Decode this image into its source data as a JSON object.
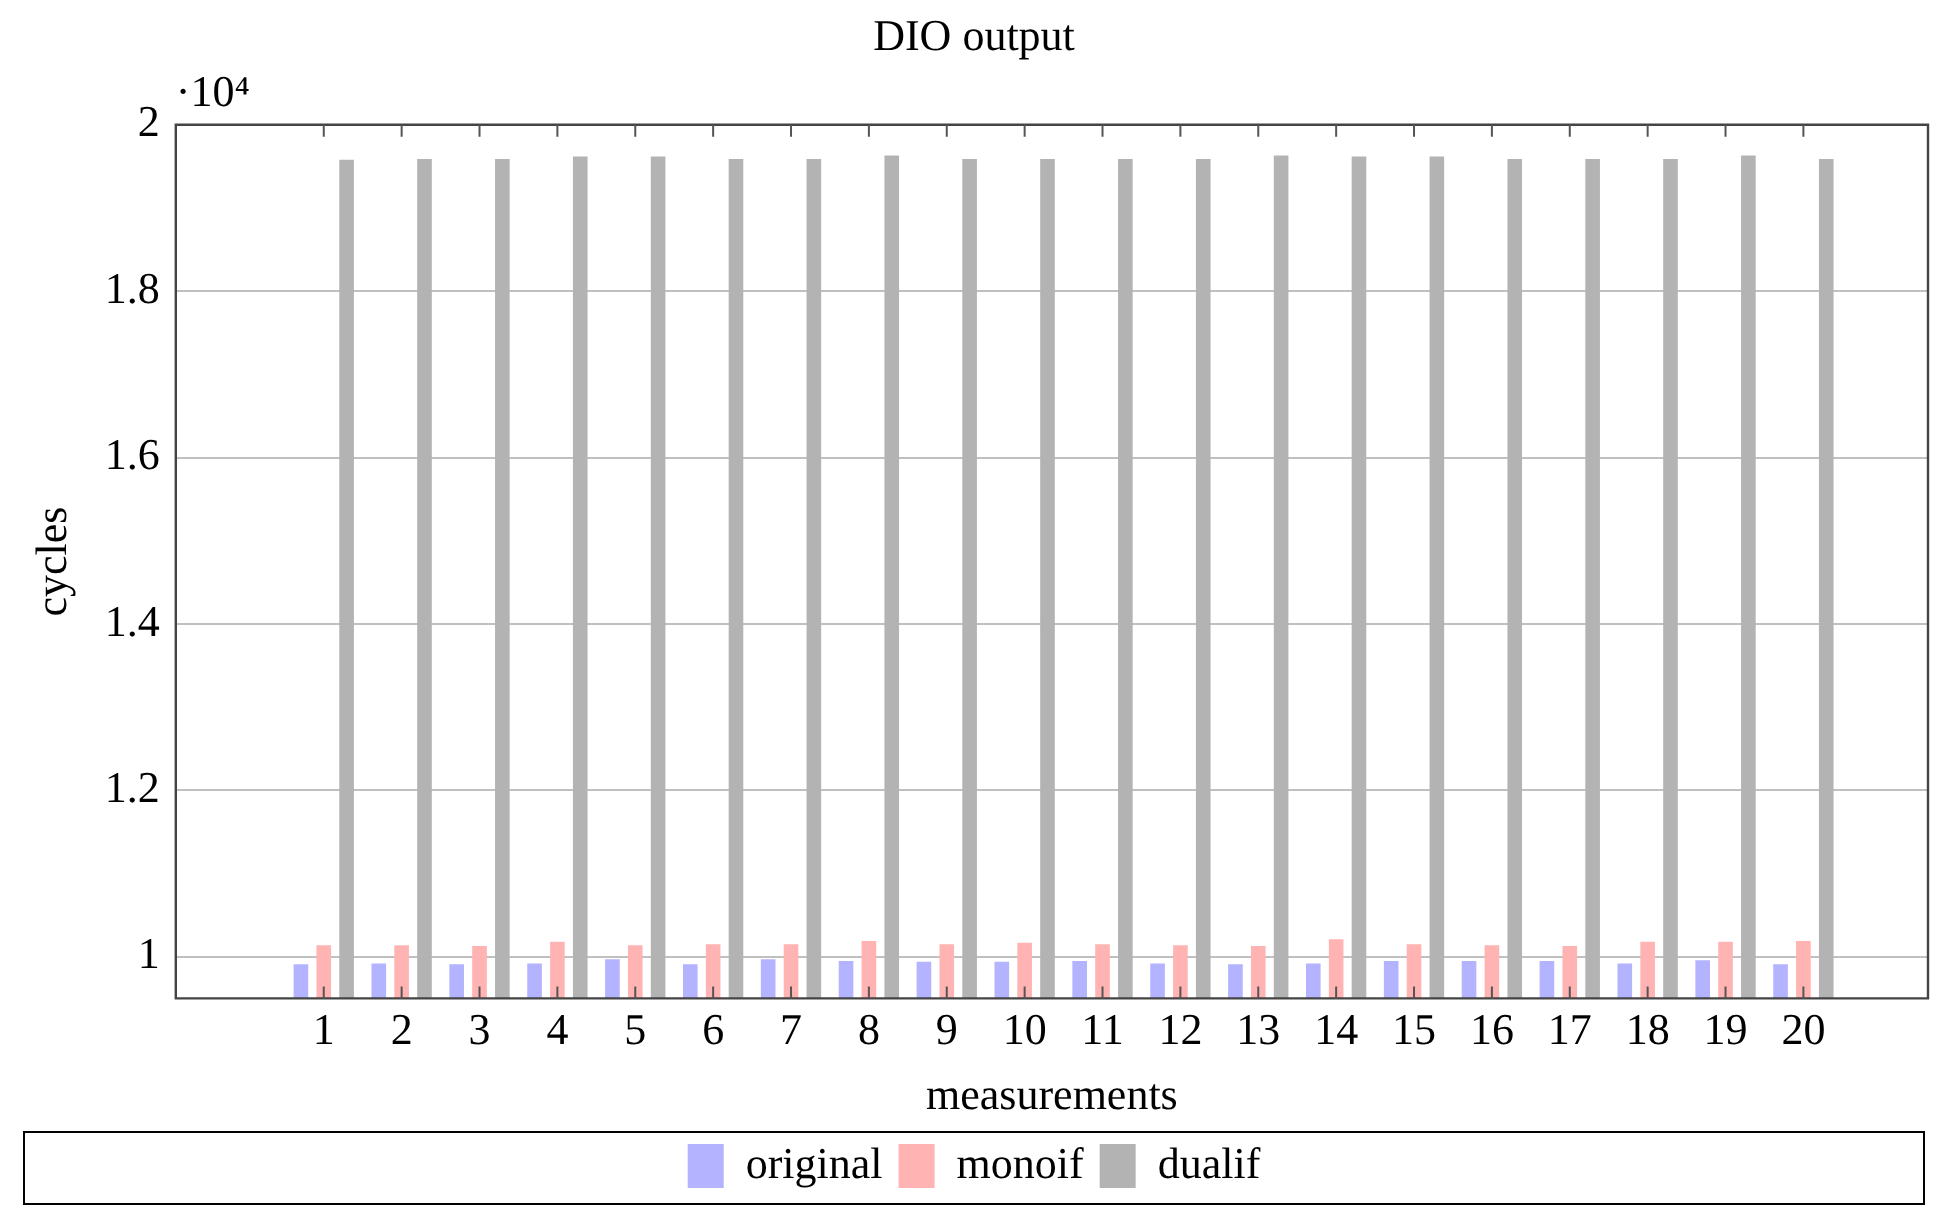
{
  "chart_data": {
    "type": "bar",
    "title": "DIO output",
    "xlabel": "measurements",
    "ylabel": "cycles",
    "annotations": [
      "·10⁴"
    ],
    "x": [
      1,
      2,
      3,
      4,
      5,
      6,
      7,
      8,
      9,
      10,
      11,
      12,
      13,
      14,
      15,
      16,
      17,
      18,
      19,
      20
    ],
    "xlim": [
      -0.9,
      21.6
    ],
    "xticks": [
      1,
      2,
      3,
      4,
      5,
      6,
      7,
      8,
      9,
      10,
      11,
      12,
      13,
      14,
      15,
      16,
      17,
      18,
      19,
      20
    ],
    "ylim": [
      0.95,
      2
    ],
    "yticks": [
      1,
      1.2,
      1.4,
      1.6,
      1.8,
      2
    ],
    "series": [
      {
        "name": "original",
        "color": "#b3b3ff",
        "values": [
          0.991,
          0.992,
          0.991,
          0.992,
          0.997,
          0.991,
          0.997,
          0.995,
          0.994,
          0.994,
          0.995,
          0.992,
          0.991,
          0.992,
          0.995,
          0.995,
          0.995,
          0.992,
          0.996,
          0.991
        ]
      },
      {
        "name": "monoif",
        "color": "#ffb3b3",
        "values": [
          1.014,
          1.014,
          1.013,
          1.018,
          1.014,
          1.015,
          1.015,
          1.019,
          1.015,
          1.017,
          1.015,
          1.014,
          1.013,
          1.021,
          1.015,
          1.014,
          1.013,
          1.018,
          1.018,
          1.019
        ]
      },
      {
        "name": "dualif",
        "color": "#b3b3b3",
        "values": [
          1.958,
          1.959,
          1.959,
          1.962,
          1.962,
          1.959,
          1.959,
          1.963,
          1.959,
          1.959,
          1.959,
          1.959,
          1.963,
          1.962,
          1.962,
          1.959,
          1.959,
          1.959,
          1.963,
          1.959
        ]
      }
    ],
    "grid": "y",
    "legend": "bottom"
  }
}
